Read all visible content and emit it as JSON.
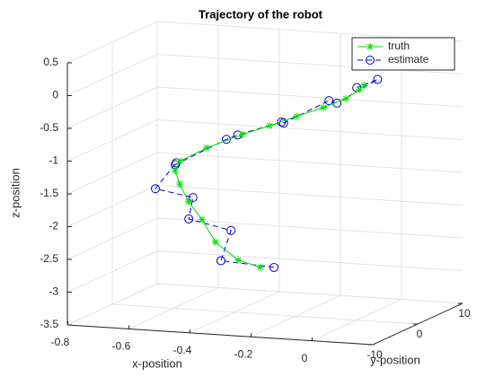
{
  "chart_data": {
    "type": "line3d",
    "title": "Trajectory of the robot",
    "xlabel": "x-position",
    "ylabel": "y-position",
    "zlabel": "z-position",
    "xlim": [
      -0.8,
      0.2
    ],
    "xticks": [
      -0.8,
      -0.6,
      -0.4,
      -0.2,
      0
    ],
    "ylim": [
      -10,
      10
    ],
    "yticks": [
      -10,
      0,
      10
    ],
    "zlim": [
      -3.5,
      0.5
    ],
    "zticks": [
      -3.5,
      -3,
      -2.5,
      -2,
      -1.5,
      -1,
      -0.5,
      0,
      0.5
    ],
    "grid": true,
    "legend": "northeast",
    "series": [
      {
        "name": "truth",
        "color": "#00e000",
        "marker": "*",
        "line": "solid",
        "x": [
          -0.315,
          -0.388,
          -0.462,
          -0.506,
          -0.55,
          -0.579,
          -0.594,
          -0.579,
          -0.491,
          -0.374,
          -0.285,
          -0.197,
          -0.109,
          -0.035,
          0.009,
          0.024
        ],
        "y": [
          0,
          0,
          0,
          0,
          0,
          0,
          0,
          0,
          0,
          0,
          0,
          0,
          0,
          0,
          0,
          0
        ],
        "z": [
          -2.79,
          -2.7,
          -2.45,
          -2.12,
          -1.86,
          -1.6,
          -1.4,
          -1.25,
          -1.02,
          -0.78,
          -0.62,
          -0.45,
          -0.29,
          -0.13,
          0.02,
          0.09
        ]
      },
      {
        "name": "estimate",
        "color": "#0000cc",
        "marker": "o",
        "line": "dashed",
        "x": [
          -0.3,
          -0.4,
          -0.47,
          -0.52,
          -0.58,
          -0.6,
          -0.62,
          -0.55,
          -0.5,
          -0.36,
          -0.29,
          -0.18,
          -0.12,
          -0.02,
          0.01,
          0.03
        ],
        "y": [
          2,
          -3,
          4,
          -2,
          3,
          -4,
          2,
          -3,
          5,
          -2,
          3,
          -4,
          2,
          -3,
          4,
          -2
        ],
        "z": [
          -2.85,
          -2.62,
          -2.4,
          -2.05,
          -1.9,
          -1.55,
          -1.35,
          -1.2,
          -1.05,
          -0.72,
          -0.66,
          -0.42,
          -0.25,
          -0.1,
          0.05,
          0.12
        ]
      }
    ]
  }
}
